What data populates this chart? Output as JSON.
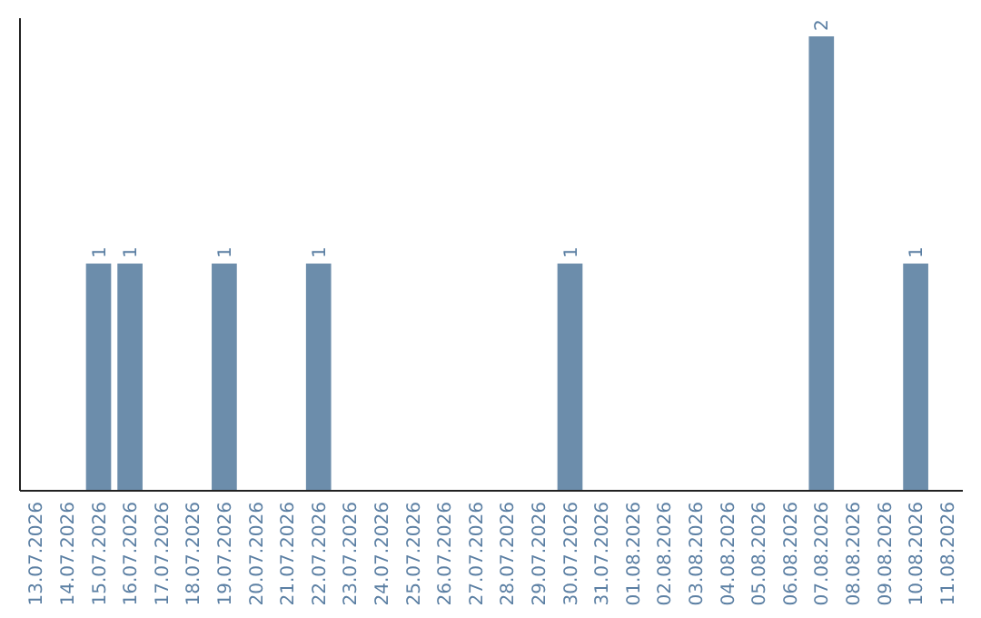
{
  "chart_data": {
    "type": "bar",
    "categories": [
      "13.07.2026",
      "14.07.2026",
      "15.07.2026",
      "16.07.2026",
      "17.07.2026",
      "18.07.2026",
      "19.07.2026",
      "20.07.2026",
      "21.07.2026",
      "22.07.2026",
      "23.07.2026",
      "24.07.2026",
      "25.07.2026",
      "26.07.2026",
      "27.07.2026",
      "28.07.2026",
      "29.07.2026",
      "30.07.2026",
      "31.07.2026",
      "01.08.2026",
      "02.08.2026",
      "03.08.2026",
      "04.08.2026",
      "05.08.2026",
      "06.08.2026",
      "07.08.2026",
      "08.08.2026",
      "09.08.2026",
      "10.08.2026",
      "11.08.2026"
    ],
    "values": [
      0,
      0,
      1,
      1,
      0,
      0,
      1,
      0,
      0,
      1,
      0,
      0,
      0,
      0,
      0,
      0,
      0,
      1,
      0,
      0,
      0,
      0,
      0,
      0,
      0,
      2,
      0,
      0,
      1,
      0
    ],
    "value_labels": [
      null,
      null,
      "1",
      "1",
      null,
      null,
      "1",
      null,
      null,
      "1",
      null,
      null,
      null,
      null,
      null,
      null,
      null,
      "1",
      null,
      null,
      null,
      null,
      null,
      null,
      null,
      "2",
      null,
      null,
      "1",
      null
    ],
    "color": "#6c8dab",
    "tick_labels": "x"
  }
}
